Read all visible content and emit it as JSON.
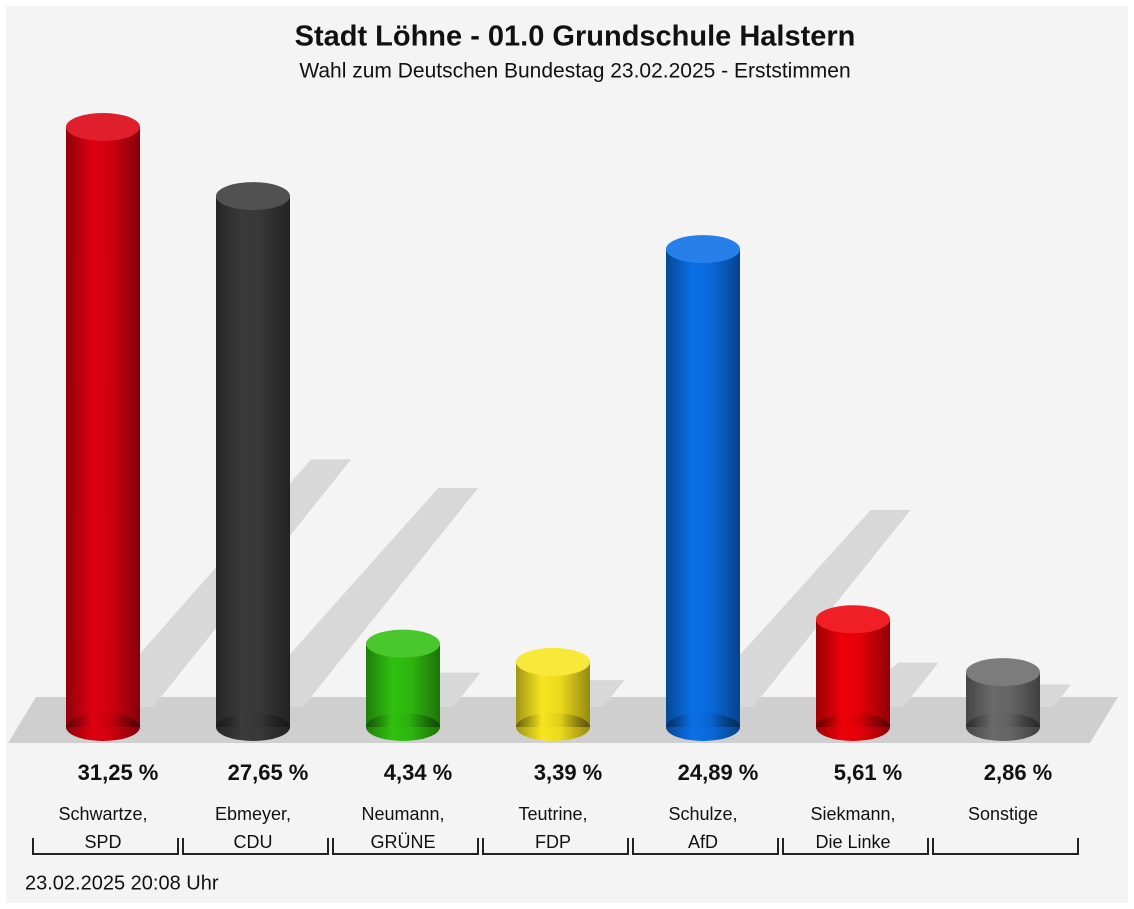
{
  "chart_data": {
    "type": "bar",
    "title": "Stadt Löhne - 01.0 Grundschule Halstern",
    "subtitle": "Wahl zum Deutschen Bundestag 23.02.2025  - Erststimmen",
    "categories": [
      [
        "Schwartze,",
        "SPD"
      ],
      [
        "Ebmeyer,",
        "CDU"
      ],
      [
        "Neumann,",
        "GRÜNE"
      ],
      [
        "Teutrine,",
        "FDP"
      ],
      [
        "Schulze,",
        "AfD"
      ],
      [
        "Siekmann,",
        "Die Linke"
      ],
      [
        "Sonstige"
      ]
    ],
    "values": [
      31.25,
      27.65,
      4.34,
      3.39,
      24.89,
      5.61,
      2.86
    ],
    "value_labels": [
      "31,25 %",
      "27,65 %",
      "4,34 %",
      "3,39 %",
      "24,89 %",
      "5,61 %",
      "2,86 %"
    ],
    "colors": [
      "#dc0010",
      "#3a3a3a",
      "#30c010",
      "#f7e51e",
      "#0a6fe6",
      "#ee0008",
      "#6a6a6a"
    ],
    "footer": "23.02.2025 20:08 Uhr"
  }
}
